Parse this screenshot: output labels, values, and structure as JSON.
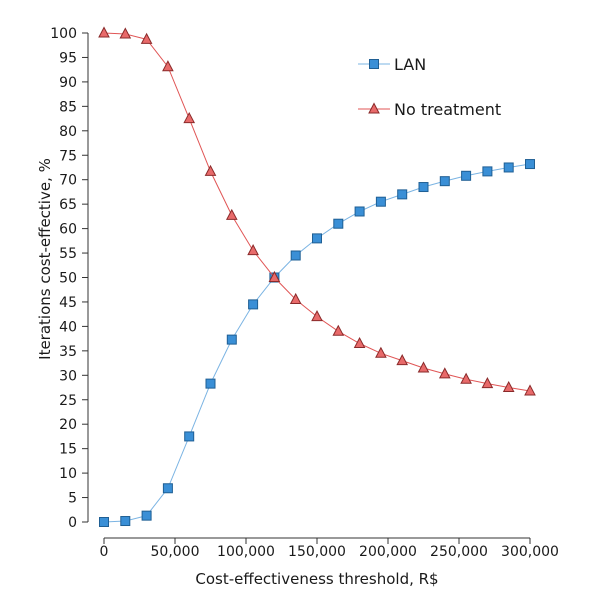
{
  "chart_data": {
    "type": "line",
    "title": "",
    "xlabel": "Cost-effectiveness threshold, R$",
    "ylabel": "Iterations cost-effective, %",
    "xlim": [
      0,
      300000
    ],
    "ylim": [
      0,
      100
    ],
    "x_ticks": [
      0,
      50000,
      100000,
      150000,
      200000,
      250000,
      300000
    ],
    "x_tick_labels": [
      "0",
      "50,000",
      "100,000",
      "150,000",
      "200,000",
      "250,000",
      "300,000"
    ],
    "y_ticks": [
      0,
      5,
      10,
      15,
      20,
      25,
      30,
      35,
      40,
      45,
      50,
      55,
      60,
      65,
      70,
      75,
      80,
      85,
      90,
      95,
      100
    ],
    "y_tick_labels": [
      "0",
      "5",
      "10",
      "15",
      "20",
      "25",
      "30",
      "35",
      "40",
      "45",
      "50",
      "55",
      "60",
      "65",
      "70",
      "75",
      "80",
      "85",
      "90",
      "95",
      "100"
    ],
    "grid": false,
    "legend_position": "top-right",
    "x": [
      0,
      15000,
      30000,
      45000,
      60000,
      75000,
      90000,
      105000,
      120000,
      135000,
      150000,
      165000,
      180000,
      195000,
      210000,
      225000,
      240000,
      255000,
      270000,
      285000,
      300000
    ],
    "series": [
      {
        "name": "LAN",
        "marker": "square",
        "color": "#3a8fd6",
        "line_color": "#7bb4e3",
        "values": [
          0,
          0.2,
          1.3,
          6.9,
          17.5,
          28.3,
          37.3,
          44.5,
          50.0,
          54.5,
          58.0,
          61.0,
          63.5,
          65.5,
          67.0,
          68.5,
          69.7,
          70.8,
          71.7,
          72.5,
          73.2
        ]
      },
      {
        "name": "No treatment",
        "marker": "triangle",
        "color": "#e86a6a",
        "line_color": "#e05555",
        "values": [
          100,
          99.8,
          98.7,
          93.1,
          82.5,
          71.7,
          62.7,
          55.5,
          50.0,
          45.5,
          42.0,
          39.0,
          36.5,
          34.5,
          33.0,
          31.5,
          30.3,
          29.2,
          28.3,
          27.5,
          26.8
        ]
      }
    ]
  }
}
